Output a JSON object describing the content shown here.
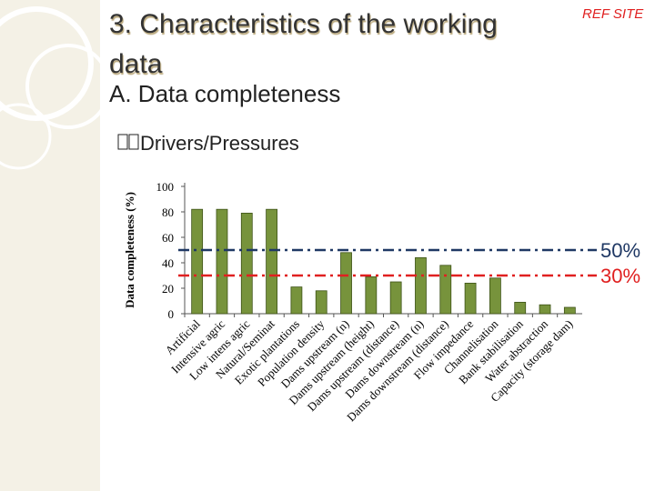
{
  "header": {
    "title_line1": "3. Characteristics of the working",
    "title_line2": "data",
    "tag": "REF SITE",
    "subtitle": "A. Data completeness",
    "bullet": "Drivers/Pressures"
  },
  "chart_data": {
    "type": "bar",
    "ylabel": "Data completeness (%)",
    "categories": [
      "Artificial",
      "Intensive agric",
      "Low intens agric",
      "Natural/Seminat",
      "Exotic plantations",
      "Population density",
      "Dams upstream (n)",
      "Dams upstream (height)",
      "Dams upstream (distance)",
      "Dams downstream (n)",
      "Dams downstream (distance)",
      "Flow impedance",
      "Channelisation",
      "Bank stabilisation",
      "Water abstraction",
      "Capacity (storage dam)"
    ],
    "values": [
      82,
      82,
      79,
      82,
      21,
      18,
      48,
      29,
      25,
      44,
      38,
      24,
      28,
      9,
      7,
      5
    ],
    "color": "#77933c",
    "ylim": [
      0,
      100
    ],
    "yticks": [
      0,
      20,
      40,
      60,
      80,
      100
    ],
    "reference_lines": [
      {
        "value": 50,
        "label": "50%",
        "color": "#1f3864"
      },
      {
        "value": 30,
        "label": "30%",
        "color": "#e02020"
      }
    ]
  }
}
